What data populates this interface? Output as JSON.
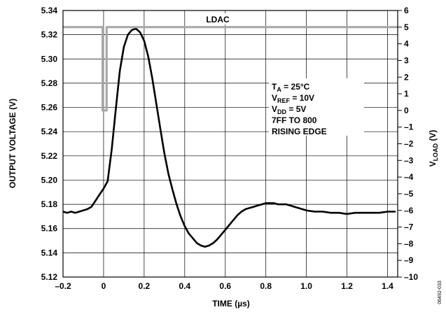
{
  "chart_data": {
    "type": "line",
    "xlabel": "TIME (µs)",
    "ylabel_left": "OUTPUT VOLTAGE (V)",
    "ylabel_right": {
      "main": "V",
      "sub": "LOAD",
      "suffix": " (V)"
    },
    "xlim": [
      -0.2,
      1.45
    ],
    "ylim_left": [
      5.12,
      5.34
    ],
    "ylim_right": [
      -10,
      6
    ],
    "x_ticks": [
      -0.2,
      0,
      0.2,
      0.4,
      0.6,
      0.8,
      1.0,
      1.2,
      1.4
    ],
    "x_tick_labels": [
      "–0.2",
      "0",
      "0.2",
      "0.4",
      "0.6",
      "0.8",
      "1.0",
      "1.2",
      "1.4"
    ],
    "y_left_ticks": [
      5.12,
      5.14,
      5.16,
      5.18,
      5.2,
      5.22,
      5.24,
      5.26,
      5.28,
      5.3,
      5.32,
      5.34
    ],
    "y_left_tick_labels": [
      "5.12",
      "5.14",
      "5.16",
      "5.18",
      "5.20",
      "5.22",
      "5.24",
      "5.26",
      "5.28",
      "5.30",
      "5.32",
      "5.34"
    ],
    "y_right_ticks": [
      -10,
      -9,
      -8,
      -7,
      -6,
      -5,
      -4,
      -3,
      -2,
      -1,
      0,
      1,
      2,
      3,
      4,
      5,
      6
    ],
    "y_right_tick_labels": [
      "–10",
      "–9",
      "–8",
      "–7",
      "–6",
      "–5",
      "–4",
      "–3",
      "–2",
      "–1",
      "0",
      "1",
      "2",
      "3",
      "4",
      "5",
      "6"
    ],
    "grid": true,
    "series": [
      {
        "name": "OUTPUT VOLTAGE",
        "axis": "left",
        "color": "#000000",
        "x": [
          -0.2,
          -0.18,
          -0.16,
          -0.14,
          -0.12,
          -0.1,
          -0.08,
          -0.06,
          -0.04,
          -0.02,
          0.0,
          0.02,
          0.04,
          0.06,
          0.08,
          0.1,
          0.12,
          0.14,
          0.16,
          0.18,
          0.2,
          0.22,
          0.24,
          0.26,
          0.28,
          0.3,
          0.32,
          0.34,
          0.36,
          0.38,
          0.4,
          0.42,
          0.44,
          0.46,
          0.48,
          0.5,
          0.52,
          0.54,
          0.56,
          0.58,
          0.6,
          0.62,
          0.64,
          0.66,
          0.68,
          0.7,
          0.72,
          0.74,
          0.76,
          0.78,
          0.8,
          0.82,
          0.84,
          0.86,
          0.88,
          0.9,
          0.92,
          0.94,
          0.96,
          0.98,
          1.0,
          1.04,
          1.08,
          1.12,
          1.16,
          1.2,
          1.24,
          1.28,
          1.32,
          1.36,
          1.4,
          1.44
        ],
        "y": [
          5.174,
          5.173,
          5.174,
          5.173,
          5.174,
          5.175,
          5.176,
          5.178,
          5.183,
          5.188,
          5.193,
          5.199,
          5.225,
          5.258,
          5.29,
          5.31,
          5.32,
          5.324,
          5.325,
          5.322,
          5.315,
          5.302,
          5.284,
          5.263,
          5.242,
          5.222,
          5.205,
          5.192,
          5.18,
          5.17,
          5.162,
          5.156,
          5.152,
          5.148,
          5.146,
          5.145,
          5.146,
          5.148,
          5.151,
          5.155,
          5.159,
          5.163,
          5.167,
          5.171,
          5.174,
          5.176,
          5.177,
          5.178,
          5.179,
          5.18,
          5.181,
          5.181,
          5.181,
          5.18,
          5.18,
          5.18,
          5.179,
          5.178,
          5.177,
          5.176,
          5.175,
          5.174,
          5.174,
          5.173,
          5.173,
          5.172,
          5.173,
          5.173,
          5.173,
          5.173,
          5.174,
          5.174
        ]
      },
      {
        "name": "LDAC",
        "axis": "right",
        "color": "#a6a6a6",
        "x": [
          -0.2,
          -0.005,
          -0.005,
          0.015,
          0.015,
          1.45
        ],
        "y": [
          5,
          5,
          0,
          0,
          5,
          5
        ]
      }
    ],
    "annotations": {
      "ldac_label": "LDAC",
      "conditions": [
        {
          "main": "T",
          "sub": "A",
          "rest": " = 25°C"
        },
        {
          "main": "V",
          "sub": "REF",
          "rest": " = 10V"
        },
        {
          "main": "V",
          "sub": "DD",
          "rest": " = 5V"
        },
        {
          "main": "7FF TO 800",
          "sub": "",
          "rest": ""
        },
        {
          "main": "RISING EDGE",
          "sub": "",
          "rest": ""
        }
      ],
      "figure_id": "06492-033"
    }
  }
}
